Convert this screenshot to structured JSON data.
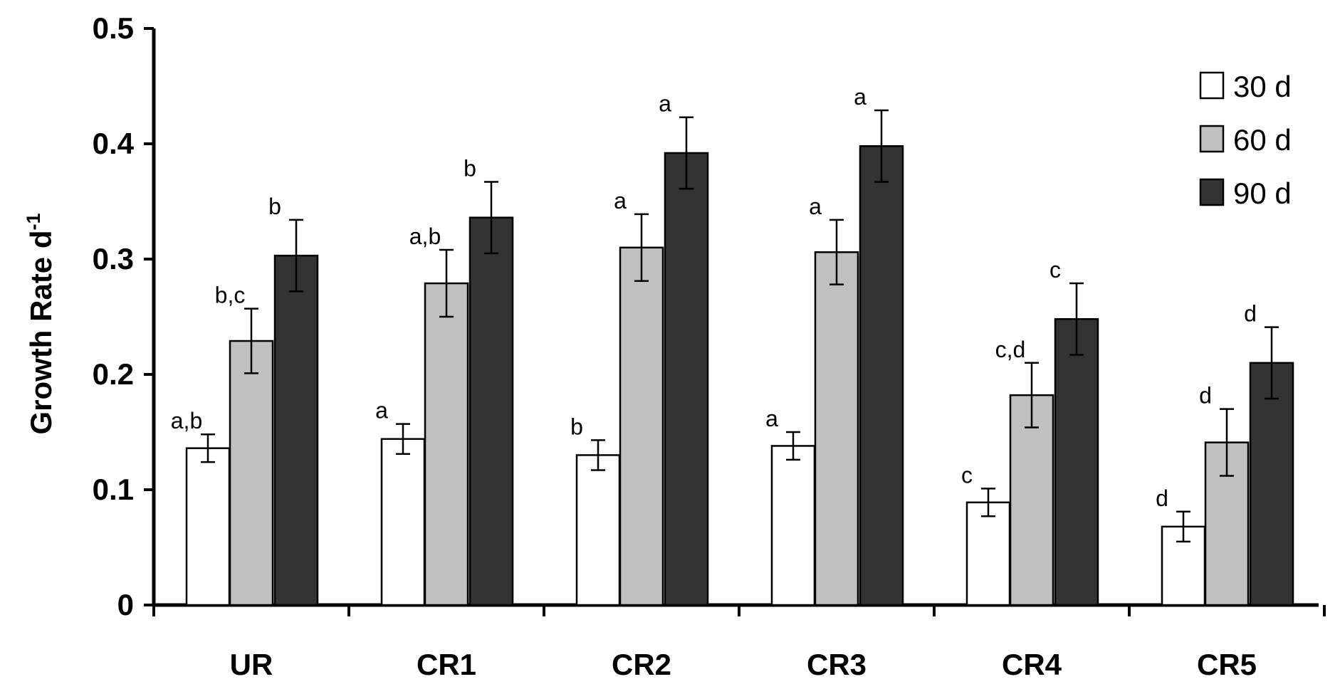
{
  "chart_data": {
    "type": "bar",
    "title": "",
    "xlabel": "",
    "ylabel": "Growth Rate d",
    "ylabel_superscript": "-1",
    "ylim": [
      0,
      0.5
    ],
    "yticks": [
      0,
      0.1,
      0.2,
      0.3,
      0.4,
      0.5
    ],
    "ytick_labels": [
      "0",
      "0.1",
      "0.2",
      "0.3",
      "0.4",
      "0.5"
    ],
    "grid": false,
    "legend_position": "top-right",
    "categories": [
      "UR",
      "CR1",
      "CR2",
      "CR3",
      "CR4",
      "CR5"
    ],
    "series": [
      {
        "name": "30 d",
        "color": "#ffffff",
        "values": [
          0.136,
          0.144,
          0.13,
          0.138,
          0.089,
          0.068
        ],
        "errors": [
          0.012,
          0.013,
          0.013,
          0.012,
          0.012,
          0.013
        ],
        "labels": [
          "a,b",
          "a",
          "b",
          "a",
          "c",
          "d"
        ]
      },
      {
        "name": "60 d",
        "color": "#c0c0c0",
        "values": [
          0.229,
          0.279,
          0.31,
          0.306,
          0.182,
          0.141
        ],
        "errors": [
          0.028,
          0.029,
          0.029,
          0.028,
          0.028,
          0.029
        ],
        "labels": [
          "b,c",
          "a,b",
          "a",
          "a",
          "c,d",
          "d"
        ]
      },
      {
        "name": "90 d",
        "color": "#333333",
        "values": [
          0.303,
          0.336,
          0.392,
          0.398,
          0.248,
          0.21
        ],
        "errors": [
          0.031,
          0.031,
          0.031,
          0.031,
          0.031,
          0.031
        ],
        "labels": [
          "b",
          "b",
          "a",
          "a",
          "c",
          "d"
        ]
      }
    ]
  }
}
